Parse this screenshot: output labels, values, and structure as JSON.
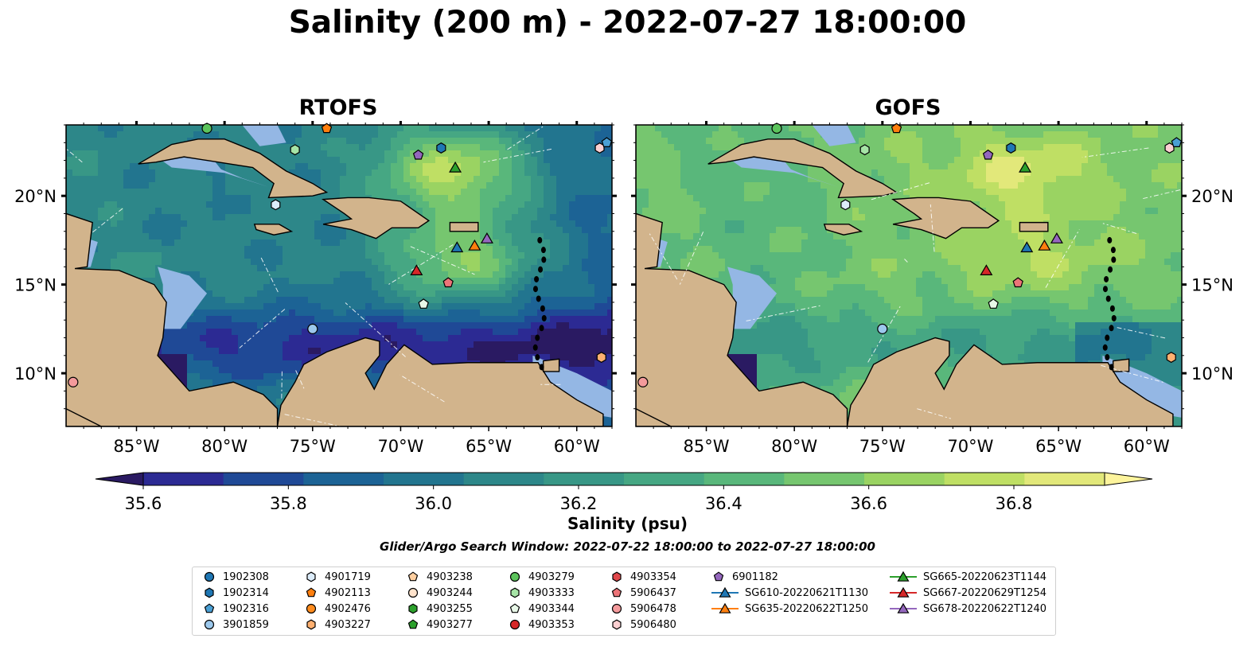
{
  "title": "Salinity (200 m) - 2022-07-27 18:00:00",
  "chart_data": [
    {
      "type": "heatmap",
      "title": "RTOFS",
      "x_ticks": [
        "85°W",
        "80°W",
        "75°W",
        "70°W",
        "65°W",
        "60°W"
      ],
      "y_ticks": [
        "20°N",
        "15°N",
        "10°N"
      ],
      "xlim": [
        -89,
        -58
      ],
      "ylim": [
        7,
        24
      ]
    },
    {
      "type": "heatmap",
      "title": "GOFS",
      "x_ticks": [
        "85°W",
        "80°W",
        "75°W",
        "70°W",
        "65°W",
        "60°W"
      ],
      "y_ticks": [
        "20°N",
        "15°N",
        "10°N"
      ],
      "xlim": [
        -89,
        -58
      ],
      "ylim": [
        7,
        24
      ]
    }
  ],
  "colorbar": {
    "label": "Salinity (psu)",
    "range": [
      35.5,
      36.9
    ],
    "ticks": [
      "35.6",
      "35.8",
      "36.0",
      "36.2",
      "36.4",
      "36.6",
      "36.8"
    ],
    "extend": "both",
    "colors": [
      "#2a1a62",
      "#2c2a93",
      "#1f4996",
      "#1c6395",
      "#22758f",
      "#2d8789",
      "#389786",
      "#46a783",
      "#59b77b",
      "#76c66f",
      "#9ad362",
      "#bfdf64",
      "#e2e87a",
      "#fdf49c"
    ]
  },
  "search_window": "Glider/Argo Search Window: 2022-07-22 18:00:00 to 2022-07-27 18:00:00",
  "legend": [
    {
      "label": "1902308",
      "marker": "circle",
      "color": "#1f77b4"
    },
    {
      "label": "1902314",
      "marker": "hexagon",
      "color": "#1f77b4"
    },
    {
      "label": "1902316",
      "marker": "pentagon",
      "color": "#4a9fd4"
    },
    {
      "label": "3901859",
      "marker": "circle",
      "color": "#9cc8ec"
    },
    {
      "label": "4901719",
      "marker": "hexagon",
      "color": "#dcecfa"
    },
    {
      "label": "4902113",
      "marker": "pentagon",
      "color": "#ff7f0e"
    },
    {
      "label": "4902476",
      "marker": "circle",
      "color": "#ff8c1e"
    },
    {
      "label": "4903227",
      "marker": "hexagon",
      "color": "#ffb070"
    },
    {
      "label": "4903238",
      "marker": "pentagon",
      "color": "#ffcfa0"
    },
    {
      "label": "4903244",
      "marker": "circle",
      "color": "#ffe3cc"
    },
    {
      "label": "4903255",
      "marker": "hexagon",
      "color": "#2ca02c"
    },
    {
      "label": "4903277",
      "marker": "pentagon",
      "color": "#2ca02c"
    },
    {
      "label": "4903279",
      "marker": "circle",
      "color": "#5cc45c"
    },
    {
      "label": "4903333",
      "marker": "hexagon",
      "color": "#a6e4a6"
    },
    {
      "label": "4903344",
      "marker": "pentagon",
      "color": "#e8f8e8"
    },
    {
      "label": "4903353",
      "marker": "circle",
      "color": "#d62728"
    },
    {
      "label": "4903354",
      "marker": "hexagon",
      "color": "#e0474a"
    },
    {
      "label": "5906437",
      "marker": "pentagon",
      "color": "#ec7478"
    },
    {
      "label": "5906478",
      "marker": "circle",
      "color": "#f49a9c"
    },
    {
      "label": "5906480",
      "marker": "hexagon",
      "color": "#fcd0d2"
    },
    {
      "label": "6901182",
      "marker": "pentagon",
      "color": "#9467bd"
    },
    {
      "label": "SG610-20220621T1130",
      "marker": "triangle",
      "color": "#1f77b4"
    },
    {
      "label": "SG635-20220622T1250",
      "marker": "triangle",
      "color": "#ff7f0e"
    },
    {
      "label": "SG665-20220623T1144",
      "marker": "triangle",
      "color": "#2ca02c"
    },
    {
      "label": "SG667-20220629T1254",
      "marker": "triangle",
      "color": "#d62728"
    },
    {
      "label": "SG678-20220622T1240",
      "marker": "triangle",
      "color": "#9467bd"
    }
  ],
  "observations": [
    {
      "id": "4903279",
      "lon": -81.0,
      "lat": 23.8
    },
    {
      "id": "4902113",
      "lon": -74.2,
      "lat": 23.8
    },
    {
      "id": "4903333",
      "lon": -76.0,
      "lat": 22.6
    },
    {
      "id": "6901182",
      "lon": -69.0,
      "lat": 22.3
    },
    {
      "id": "1902314",
      "lon": -67.7,
      "lat": 22.7
    },
    {
      "id": "SG665-20220623T1144",
      "lon": -66.9,
      "lat": 21.6
    },
    {
      "id": "5906480",
      "lon": -58.7,
      "lat": 22.7
    },
    {
      "id": "1902316",
      "lon": -58.3,
      "lat": 23.0
    },
    {
      "id": "4901719",
      "lon": -77.1,
      "lat": 19.5
    },
    {
      "id": "SG610-20220621T1130",
      "lon": -66.8,
      "lat": 17.1
    },
    {
      "id": "SG635-20220622T1250",
      "lon": -65.8,
      "lat": 17.2
    },
    {
      "id": "SG678-20220622T1240",
      "lon": -65.1,
      "lat": 17.6
    },
    {
      "id": "SG667-20220629T1254",
      "lon": -69.1,
      "lat": 15.8
    },
    {
      "id": "5906437",
      "lon": -67.3,
      "lat": 15.1
    },
    {
      "id": "4903344",
      "lon": -68.7,
      "lat": 13.9
    },
    {
      "id": "3901859",
      "lon": -75.0,
      "lat": 12.5
    },
    {
      "id": "4903227",
      "lon": -58.6,
      "lat": 10.9
    },
    {
      "id": "5906478",
      "lon": -88.6,
      "lat": 9.5
    }
  ]
}
